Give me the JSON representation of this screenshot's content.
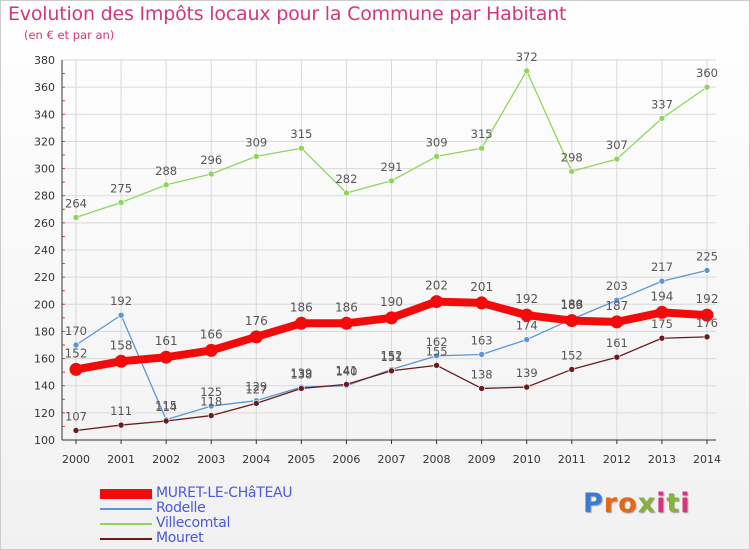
{
  "title": "Evolution des Impôts locaux pour la Commune par Habitant",
  "subtitle": "(en € et par an)",
  "logo": {
    "letters": [
      "P",
      "r",
      "o",
      "x",
      "i",
      "t",
      "i"
    ],
    "colors": [
      "#3a7ad5",
      "#e3691a",
      "#e3691a",
      "#86b23a",
      "#d4367a",
      "#86b23a",
      "#d4367a"
    ]
  },
  "chart_data": {
    "type": "line",
    "title": "Evolution des Impôts locaux pour la Commune par Habitant",
    "subtitle": "(en € et par an)",
    "x": [
      "2000",
      "2001",
      "2002",
      "2003",
      "2004",
      "2005",
      "2006",
      "2007",
      "2008",
      "2009",
      "2010",
      "2011",
      "2012",
      "2013",
      "2014"
    ],
    "ylim": [
      100,
      380
    ],
    "yticks": [
      100,
      120,
      140,
      160,
      180,
      200,
      220,
      240,
      260,
      280,
      300,
      320,
      340,
      360,
      380
    ],
    "grid": true,
    "legend_position": "bottom-left",
    "series": [
      {
        "name": "MURET-LE-CHâTEAU",
        "color": "#f20b0b",
        "values": [
          152,
          158,
          161,
          166,
          176,
          186,
          186,
          190,
          202,
          201,
          192,
          188,
          187,
          194,
          192
        ]
      },
      {
        "name": "Rodelle",
        "color": "#5b96d6",
        "values": [
          170,
          192,
          115,
          125,
          129,
          139,
          140,
          152,
          162,
          163,
          174,
          189,
          203,
          217,
          225
        ]
      },
      {
        "name": "Villecomtal",
        "color": "#8ed65b",
        "values": [
          264,
          275,
          288,
          296,
          309,
          315,
          282,
          291,
          309,
          315,
          372,
          298,
          307,
          337,
          360
        ]
      },
      {
        "name": "Mouret",
        "color": "#6b1b1b",
        "values": [
          107,
          111,
          114,
          118,
          127,
          138,
          141,
          151,
          155,
          138,
          139,
          152,
          161,
          175,
          176
        ]
      }
    ]
  }
}
